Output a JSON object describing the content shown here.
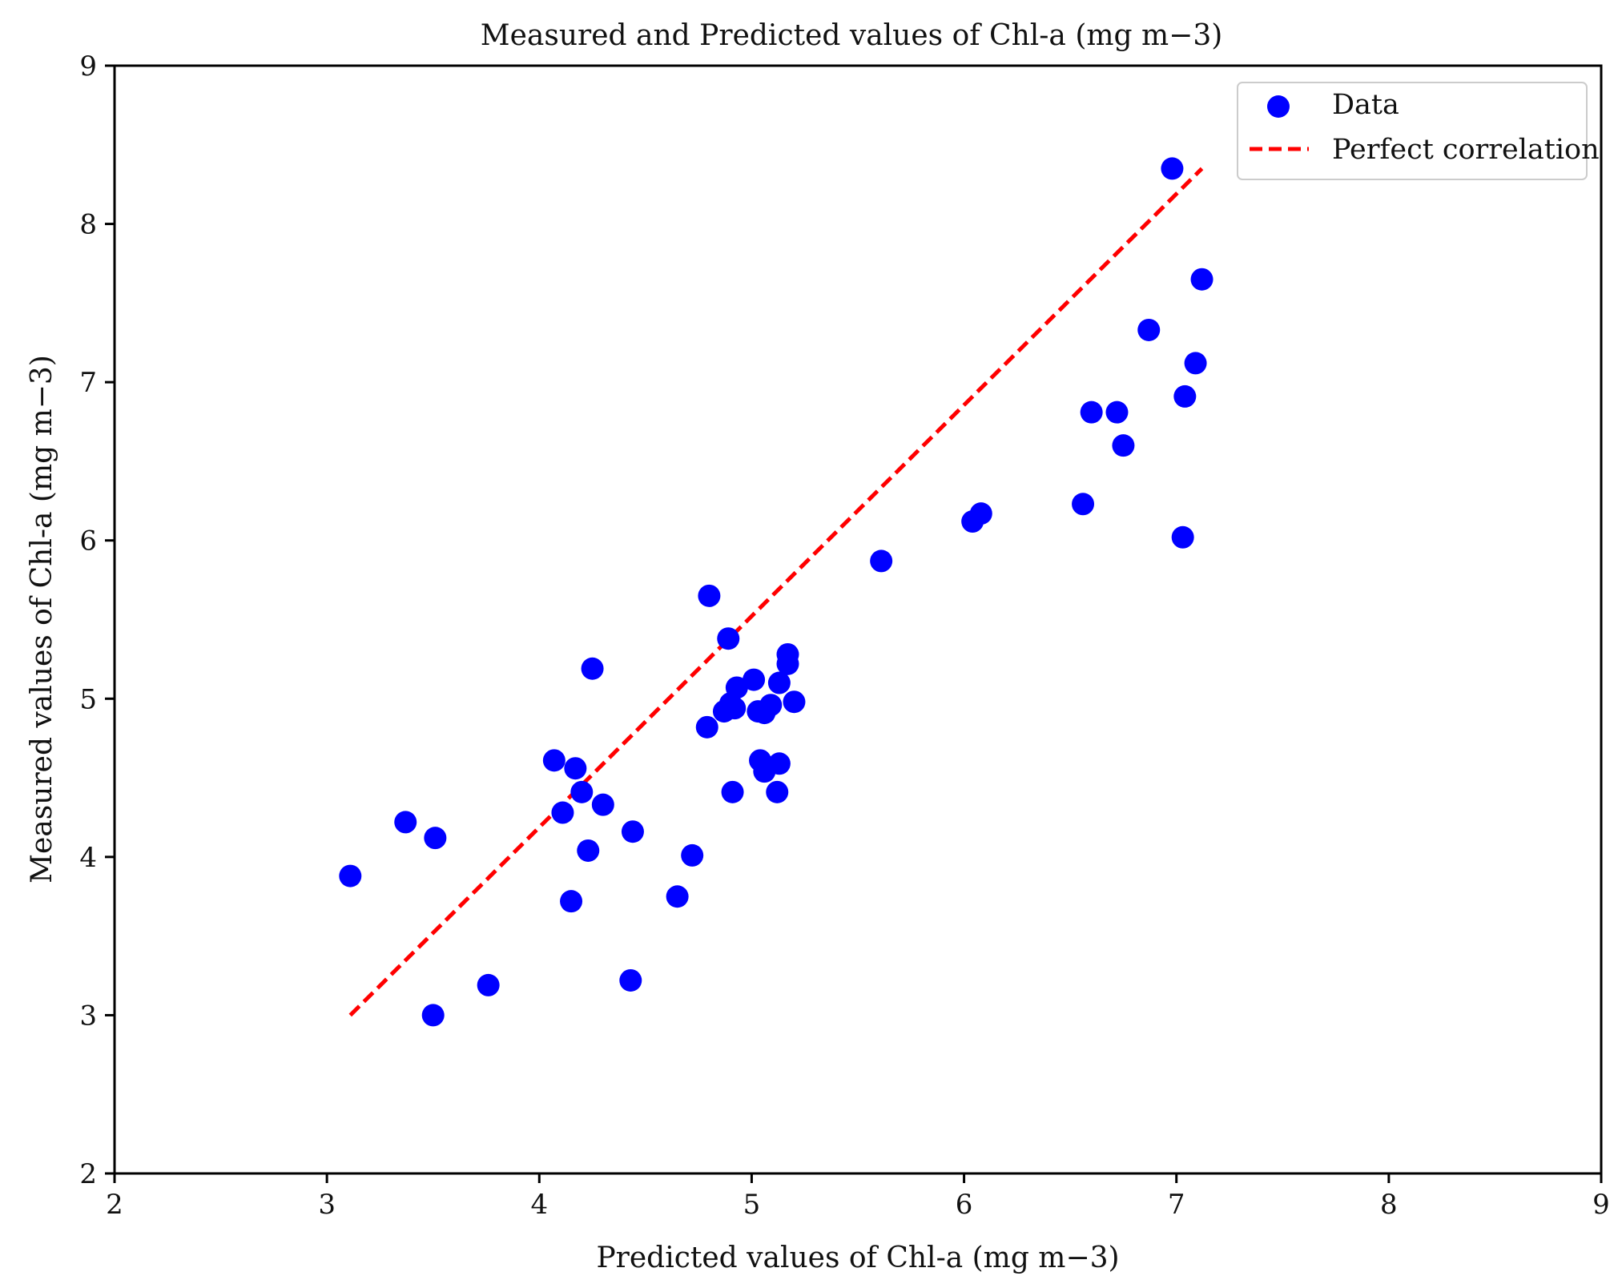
{
  "chart_data": {
    "type": "scatter",
    "title": "Measured and Predicted values of Chl-a (mg m−3)",
    "xlabel": "Predicted values of Chl-a (mg m−3)",
    "ylabel": "Measured values of Chl-a (mg m−3)",
    "xlim": [
      2,
      9
    ],
    "ylim": [
      2,
      9
    ],
    "xticks": [
      2,
      3,
      4,
      5,
      6,
      7,
      8,
      9
    ],
    "yticks": [
      2,
      3,
      4,
      5,
      6,
      7,
      8,
      9
    ],
    "grid": false,
    "legend_position": "top-right",
    "colors": {
      "points": "#0000ff",
      "line": "#ff0000"
    },
    "series": [
      {
        "name": "Data",
        "kind": "scatter",
        "points": [
          [
            3.11,
            3.88
          ],
          [
            3.37,
            4.22
          ],
          [
            3.51,
            4.12
          ],
          [
            3.5,
            3.0
          ],
          [
            3.76,
            3.19
          ],
          [
            4.07,
            4.61
          ],
          [
            4.11,
            4.28
          ],
          [
            4.15,
            3.72
          ],
          [
            4.17,
            4.56
          ],
          [
            4.2,
            4.41
          ],
          [
            4.23,
            4.04
          ],
          [
            4.25,
            5.19
          ],
          [
            4.3,
            4.33
          ],
          [
            4.43,
            3.22
          ],
          [
            4.44,
            4.16
          ],
          [
            4.65,
            3.75
          ],
          [
            4.72,
            4.01
          ],
          [
            4.79,
            4.82
          ],
          [
            4.8,
            5.65
          ],
          [
            4.87,
            4.92
          ],
          [
            4.89,
            5.38
          ],
          [
            4.9,
            4.97
          ],
          [
            4.92,
            4.94
          ],
          [
            4.91,
            4.41
          ],
          [
            4.93,
            5.07
          ],
          [
            5.01,
            5.12
          ],
          [
            5.03,
            4.92
          ],
          [
            5.04,
            4.61
          ],
          [
            5.06,
            4.91
          ],
          [
            5.06,
            4.54
          ],
          [
            5.09,
            4.96
          ],
          [
            5.12,
            4.41
          ],
          [
            5.13,
            4.59
          ],
          [
            5.13,
            5.1
          ],
          [
            5.17,
            5.28
          ],
          [
            5.17,
            5.22
          ],
          [
            5.2,
            4.98
          ],
          [
            5.61,
            5.87
          ],
          [
            6.04,
            6.12
          ],
          [
            6.08,
            6.17
          ],
          [
            6.56,
            6.23
          ],
          [
            6.6,
            6.81
          ],
          [
            6.72,
            6.81
          ],
          [
            6.75,
            6.6
          ],
          [
            6.87,
            7.33
          ],
          [
            6.98,
            8.35
          ],
          [
            7.03,
            6.02
          ],
          [
            7.04,
            6.91
          ],
          [
            7.09,
            7.12
          ],
          [
            7.12,
            7.65
          ]
        ]
      },
      {
        "name": "Perfect correlation",
        "kind": "line",
        "style": "dashed",
        "points": [
          [
            3.11,
            3.0
          ],
          [
            7.12,
            8.35
          ]
        ]
      }
    ]
  }
}
